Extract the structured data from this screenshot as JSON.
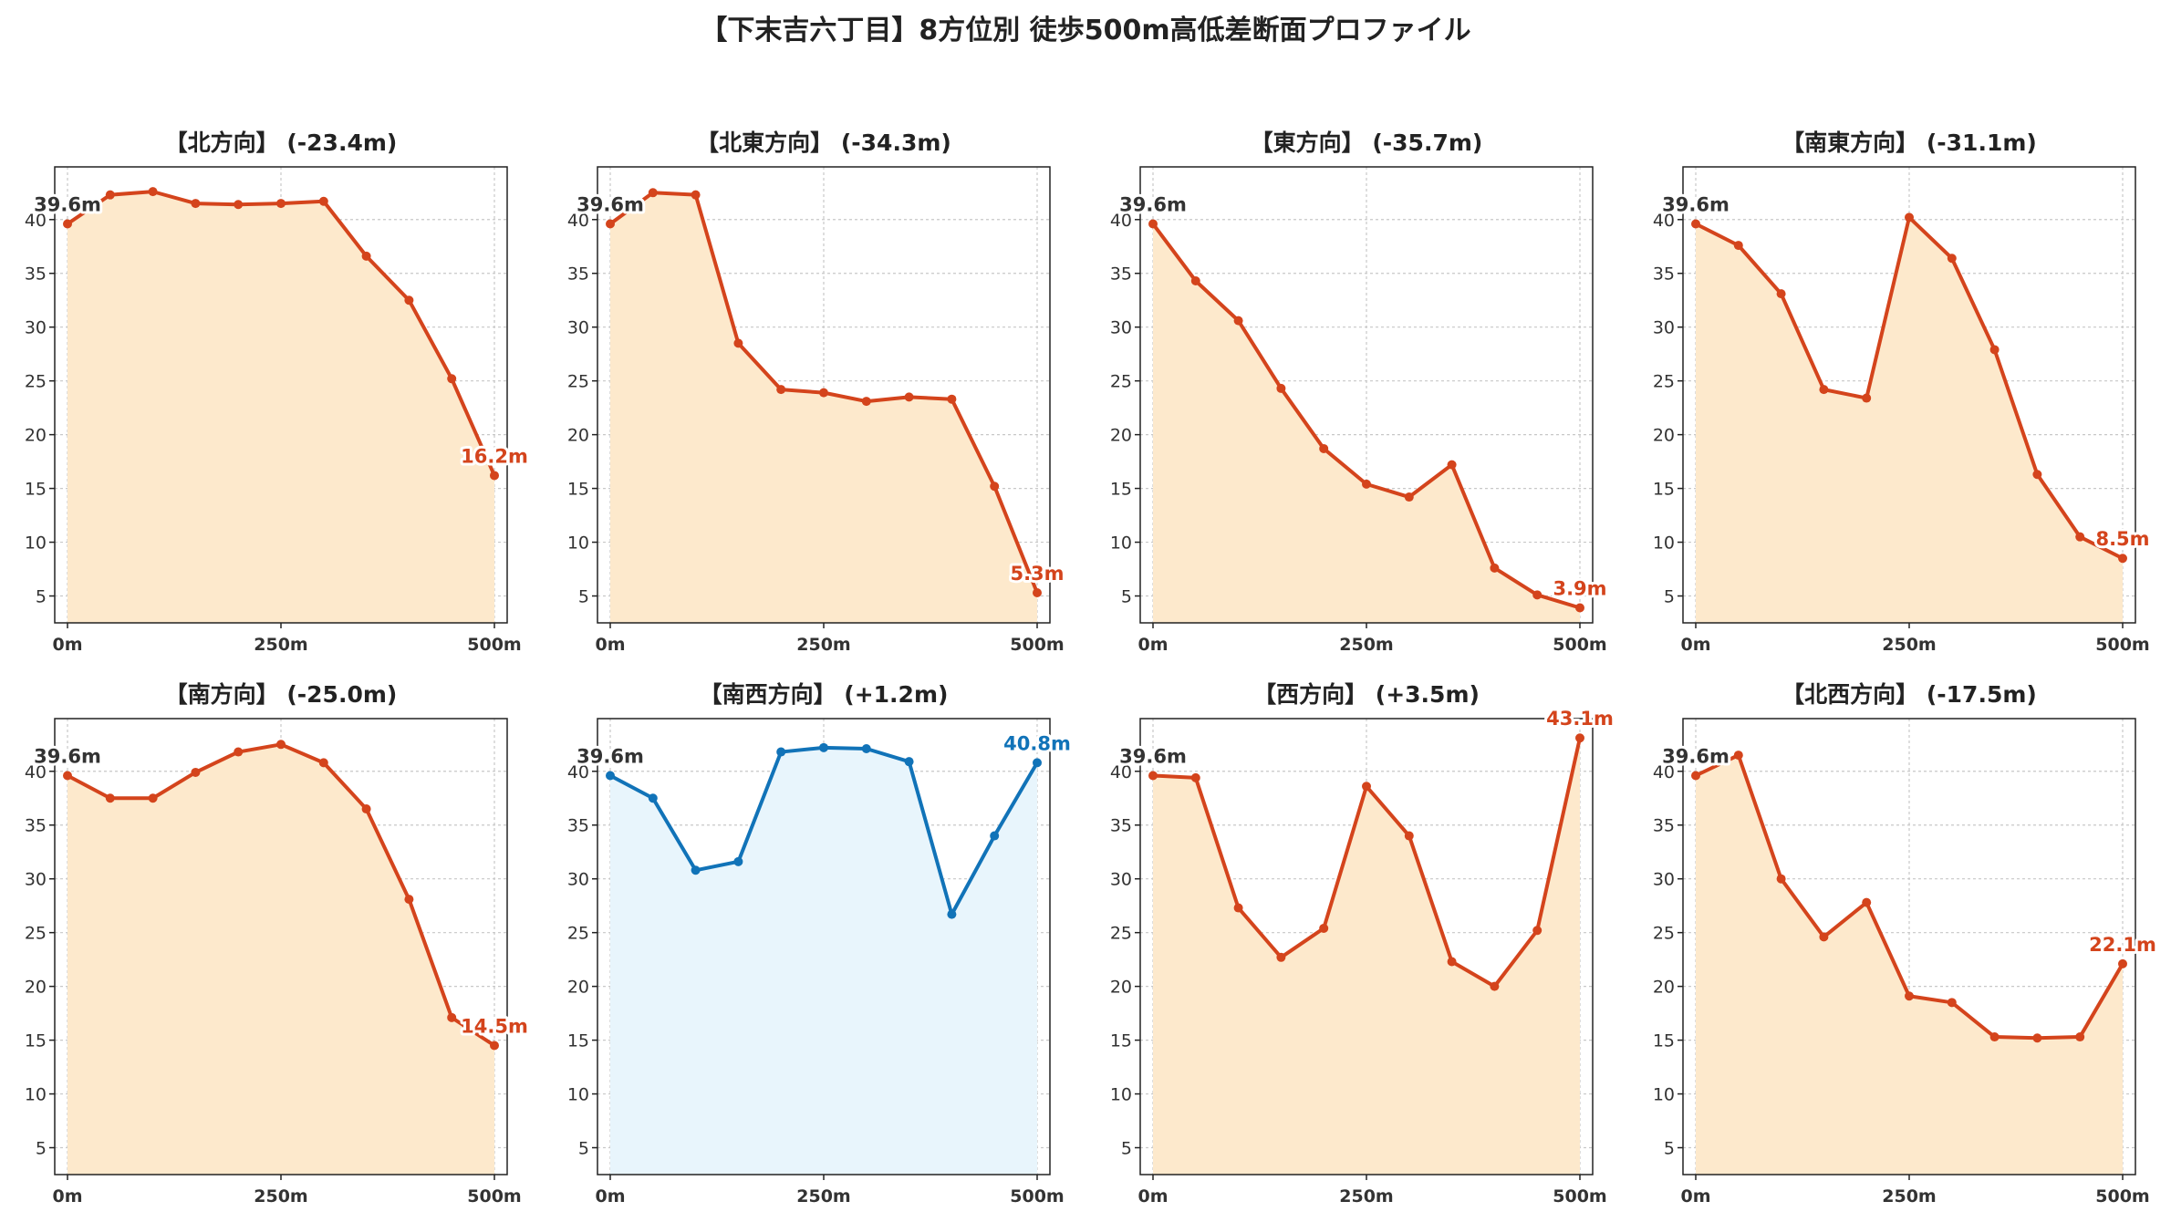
{
  "title": "【下末吉六丁目】8方位別 徒歩500m高低差断面プロファイル",
  "colors": {
    "down": "#d4441c",
    "up": "#1173b8",
    "fill_down": "#fde9cc",
    "fill_up": "#e8f5fc",
    "start_label": "#333333"
  },
  "chart_data": [
    {
      "type": "area",
      "title": "【北方向】 (-23.4m)",
      "x": [
        0,
        50,
        100,
        150,
        200,
        250,
        300,
        350,
        400,
        450,
        500
      ],
      "y": [
        39.6,
        42.3,
        42.6,
        41.5,
        41.4,
        41.5,
        41.7,
        36.6,
        32.5,
        25.2,
        16.2
      ],
      "xticks": [
        "0m",
        "250m",
        "500m"
      ],
      "yticks": [
        5,
        10,
        15,
        20,
        25,
        30,
        35,
        40
      ],
      "ylim": [
        2.5,
        44.9
      ],
      "start_label": "39.6m",
      "end_label": "16.2m",
      "color": "#d4441c",
      "fill": "#fde9cc",
      "grid": true
    },
    {
      "type": "area",
      "title": "【北東方向】 (-34.3m)",
      "x": [
        0,
        50,
        100,
        150,
        200,
        250,
        300,
        350,
        400,
        450,
        500
      ],
      "y": [
        39.6,
        42.5,
        42.3,
        28.5,
        24.2,
        23.9,
        23.1,
        23.5,
        23.3,
        15.2,
        5.3
      ],
      "xticks": [
        "0m",
        "250m",
        "500m"
      ],
      "yticks": [
        5,
        10,
        15,
        20,
        25,
        30,
        35,
        40
      ],
      "ylim": [
        2.5,
        44.9
      ],
      "start_label": "39.6m",
      "end_label": "5.3m",
      "color": "#d4441c",
      "fill": "#fde9cc",
      "grid": true
    },
    {
      "type": "area",
      "title": "【東方向】 (-35.7m)",
      "x": [
        0,
        50,
        100,
        150,
        200,
        250,
        300,
        350,
        400,
        450,
        500
      ],
      "y": [
        39.6,
        34.3,
        30.6,
        24.3,
        18.7,
        15.4,
        14.2,
        17.2,
        7.6,
        5.1,
        3.9
      ],
      "xticks": [
        "0m",
        "250m",
        "500m"
      ],
      "yticks": [
        5,
        10,
        15,
        20,
        25,
        30,
        35,
        40
      ],
      "ylim": [
        2.5,
        44.9
      ],
      "start_label": "39.6m",
      "end_label": "3.9m",
      "color": "#d4441c",
      "fill": "#fde9cc",
      "grid": true
    },
    {
      "type": "area",
      "title": "【南東方向】 (-31.1m)",
      "x": [
        0,
        50,
        100,
        150,
        200,
        250,
        300,
        350,
        400,
        450,
        500
      ],
      "y": [
        39.6,
        37.6,
        33.1,
        24.2,
        23.4,
        40.2,
        36.4,
        27.9,
        16.3,
        10.5,
        8.5
      ],
      "xticks": [
        "0m",
        "250m",
        "500m"
      ],
      "yticks": [
        5,
        10,
        15,
        20,
        25,
        30,
        35,
        40
      ],
      "ylim": [
        2.5,
        44.9
      ],
      "start_label": "39.6m",
      "end_label": "8.5m",
      "color": "#d4441c",
      "fill": "#fde9cc",
      "grid": true
    },
    {
      "type": "area",
      "title": "【南方向】 (-25.0m)",
      "x": [
        0,
        50,
        100,
        150,
        200,
        250,
        300,
        350,
        400,
        450,
        500
      ],
      "y": [
        39.6,
        37.5,
        37.5,
        39.9,
        41.8,
        42.5,
        40.8,
        36.5,
        28.1,
        17.1,
        14.5
      ],
      "xticks": [
        "0m",
        "250m",
        "500m"
      ],
      "yticks": [
        5,
        10,
        15,
        20,
        25,
        30,
        35,
        40
      ],
      "ylim": [
        2.5,
        44.9
      ],
      "start_label": "39.6m",
      "end_label": "14.5m",
      "color": "#d4441c",
      "fill": "#fde9cc",
      "grid": true
    },
    {
      "type": "area",
      "title": "【南西方向】 (+1.2m)",
      "x": [
        0,
        50,
        100,
        150,
        200,
        250,
        300,
        350,
        400,
        450,
        500
      ],
      "y": [
        39.6,
        37.5,
        30.8,
        31.6,
        41.8,
        42.2,
        42.1,
        40.9,
        26.7,
        34.0,
        40.8
      ],
      "xticks": [
        "0m",
        "250m",
        "500m"
      ],
      "yticks": [
        5,
        10,
        15,
        20,
        25,
        30,
        35,
        40
      ],
      "ylim": [
        2.5,
        44.9
      ],
      "start_label": "39.6m",
      "end_label": "40.8m",
      "color": "#1173b8",
      "fill": "#e8f5fc",
      "grid": true
    },
    {
      "type": "area",
      "title": "【西方向】 (+3.5m)",
      "x": [
        0,
        50,
        100,
        150,
        200,
        250,
        300,
        350,
        400,
        450,
        500
      ],
      "y": [
        39.6,
        39.4,
        27.3,
        22.7,
        25.4,
        38.6,
        34.0,
        22.3,
        20.0,
        25.2,
        43.1
      ],
      "xticks": [
        "0m",
        "250m",
        "500m"
      ],
      "yticks": [
        5,
        10,
        15,
        20,
        25,
        30,
        35,
        40
      ],
      "ylim": [
        2.5,
        44.9
      ],
      "start_label": "39.6m",
      "end_label": "43.1m",
      "color": "#d4441c",
      "fill": "#fde9cc",
      "grid": true
    },
    {
      "type": "area",
      "title": "【北西方向】 (-17.5m)",
      "x": [
        0,
        50,
        100,
        150,
        200,
        250,
        300,
        350,
        400,
        450,
        500
      ],
      "y": [
        39.6,
        41.5,
        30.0,
        24.6,
        27.8,
        19.1,
        18.5,
        15.3,
        15.2,
        15.3,
        22.1
      ],
      "xticks": [
        "0m",
        "250m",
        "500m"
      ],
      "yticks": [
        5,
        10,
        15,
        20,
        25,
        30,
        35,
        40
      ],
      "ylim": [
        2.5,
        44.9
      ],
      "start_label": "39.6m",
      "end_label": "22.1m",
      "color": "#d4441c",
      "fill": "#fde9cc",
      "grid": true
    }
  ]
}
